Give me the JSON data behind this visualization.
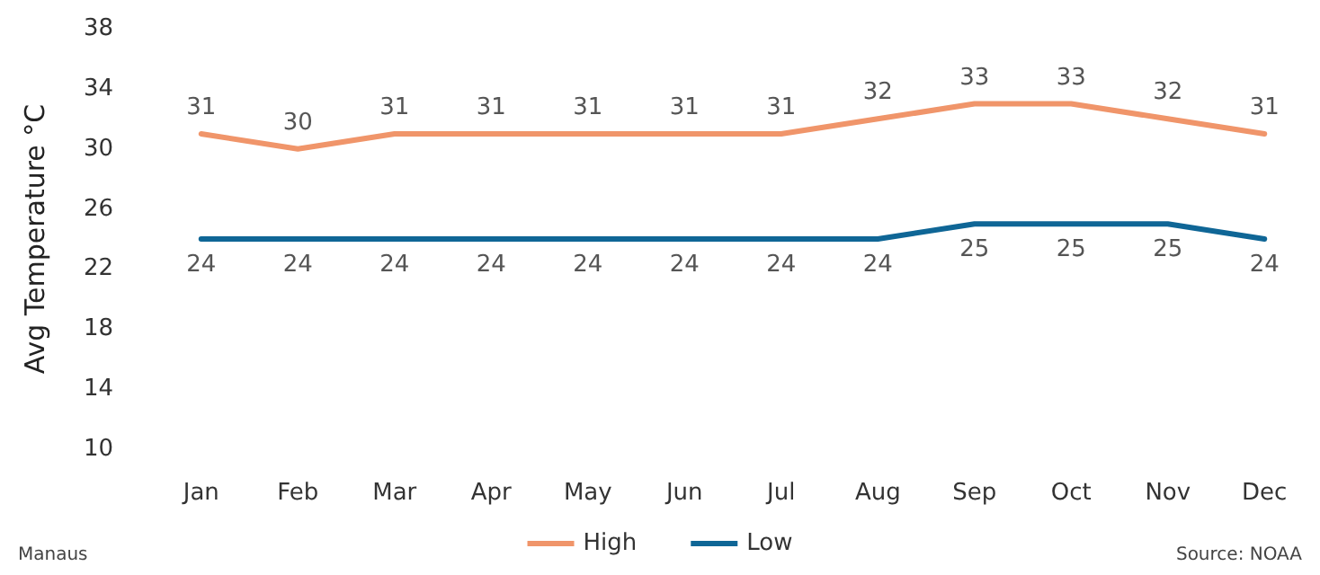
{
  "chart_data": {
    "type": "line",
    "ylabel": "Avg Temperature °C",
    "categories": [
      "Jan",
      "Feb",
      "Mar",
      "Apr",
      "May",
      "Jun",
      "Jul",
      "Aug",
      "Sep",
      "Oct",
      "Nov",
      "Dec"
    ],
    "series": [
      {
        "name": "High",
        "color": "#f0956a",
        "values": [
          31,
          30,
          31,
          31,
          31,
          31,
          31,
          32,
          33,
          33,
          32,
          31
        ]
      },
      {
        "name": "Low",
        "color": "#0f6696",
        "values": [
          24,
          24,
          24,
          24,
          24,
          24,
          24,
          24,
          25,
          25,
          25,
          24
        ]
      }
    ],
    "ylim": [
      10,
      38
    ],
    "yticks": [
      10,
      14,
      18,
      22,
      26,
      30,
      34,
      38
    ],
    "grid": false,
    "legend": "bottom",
    "marker": "none",
    "line_style": "solid",
    "data_labels": true,
    "annotations": [
      "Manaus",
      "Source: NOAA"
    ]
  }
}
